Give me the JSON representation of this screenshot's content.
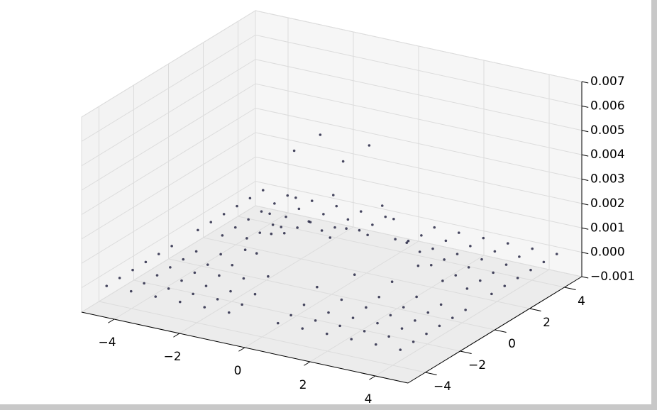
{
  "chart_data": {
    "type": "scatter3d",
    "x": [
      -4.5,
      -3.75,
      -3,
      -2.25,
      -1.5,
      -0.75,
      0.75,
      1.5,
      2.25,
      3,
      3.75,
      4.5
    ],
    "y": [
      -4.5,
      -3.75,
      -3,
      -2.25,
      -1.5,
      -0.75,
      0.75,
      1.5,
      2.25,
      3,
      3.75,
      4.5
    ],
    "z": [
      [
        0,
        0,
        0,
        0,
        0,
        0,
        0,
        0,
        0,
        0,
        0,
        0
      ],
      [
        0,
        0,
        0,
        0,
        0,
        0,
        0,
        0,
        0,
        0,
        0,
        0
      ],
      [
        0,
        0,
        0,
        0,
        0,
        0.0001,
        0.0001,
        0,
        0,
        0,
        0,
        0
      ],
      [
        0,
        0,
        0,
        0.0001,
        0.0002,
        0.0005,
        0.0005,
        0.0002,
        0.0001,
        0,
        0,
        0
      ],
      [
        0,
        0,
        0,
        0.0002,
        0.0009,
        0.0022,
        0.0022,
        0.0009,
        0.0002,
        0,
        0,
        0
      ],
      [
        0,
        0,
        0.0001,
        0.0005,
        0.0022,
        0.005,
        0.005,
        0.0022,
        0.0005,
        0.0001,
        0,
        0
      ],
      [
        0,
        0,
        0.0001,
        0.0005,
        0.0022,
        0.005,
        0.005,
        0.0022,
        0.0005,
        0.0001,
        0,
        0
      ],
      [
        0,
        0,
        0,
        0.0002,
        0.0009,
        0.0022,
        0.0022,
        0.0009,
        0.0002,
        0,
        0,
        0
      ],
      [
        0,
        0,
        0,
        0.0001,
        0.0002,
        0.0005,
        0.0005,
        0.0002,
        0.0001,
        0,
        0,
        0
      ],
      [
        0,
        0,
        0,
        0,
        0,
        0.0001,
        0.0001,
        0,
        0,
        0,
        0,
        0
      ],
      [
        0,
        0,
        0,
        0,
        0,
        0,
        0,
        0,
        0,
        0,
        0,
        0
      ],
      [
        0,
        0,
        0,
        0,
        0,
        0,
        0,
        0,
        0,
        0,
        0,
        0
      ]
    ],
    "color": "#1a1a3a",
    "xlim": [
      -5,
      5
    ],
    "ylim": [
      -5,
      5
    ],
    "zlim": [
      -0.001,
      0.007
    ],
    "xticks": [
      {
        "value": -4,
        "label": "−4"
      },
      {
        "value": -2,
        "label": "−2"
      },
      0,
      2,
      4
    ],
    "yticks": [
      {
        "value": -4,
        "label": "−4"
      },
      {
        "value": -2,
        "label": "−2"
      },
      0,
      2,
      4
    ],
    "zticks": [
      {
        "value": -0.001,
        "label": "−0.001"
      },
      {
        "value": 0,
        "label": "0.000"
      },
      0.001,
      0.002,
      0.003,
      0.004,
      0.005,
      0.006,
      0.007
    ],
    "grid": true
  }
}
